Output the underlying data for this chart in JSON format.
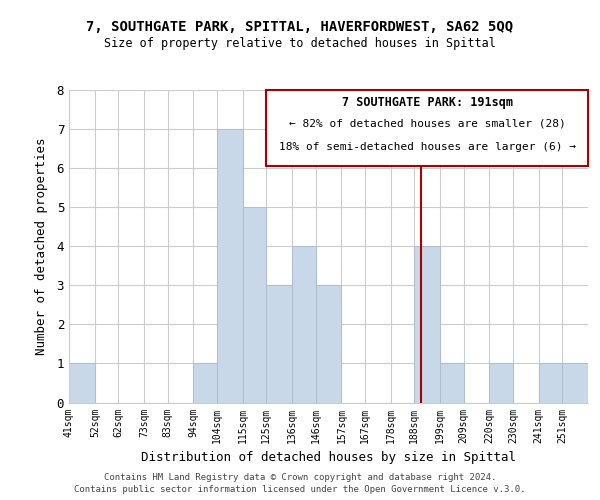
{
  "title1": "7, SOUTHGATE PARK, SPITTAL, HAVERFORDWEST, SA62 5QQ",
  "title2": "Size of property relative to detached houses in Spittal",
  "xlabel": "Distribution of detached houses by size in Spittal",
  "ylabel": "Number of detached properties",
  "bar_labels": [
    "41sqm",
    "52sqm",
    "62sqm",
    "73sqm",
    "83sqm",
    "94sqm",
    "104sqm",
    "115sqm",
    "125sqm",
    "136sqm",
    "146sqm",
    "157sqm",
    "167sqm",
    "178sqm",
    "188sqm",
    "199sqm",
    "209sqm",
    "220sqm",
    "230sqm",
    "241sqm",
    "251sqm"
  ],
  "bar_values": [
    1,
    0,
    0,
    0,
    0,
    1,
    7,
    5,
    3,
    4,
    3,
    0,
    0,
    0,
    4,
    1,
    0,
    1,
    0,
    1,
    1
  ],
  "bar_color": "#c8d8e8",
  "bar_edge_color": "#aabbcc",
  "grid_color": "#cccccc",
  "subject_line_color": "#aa0000",
  "annotation_box_title": "7 SOUTHGATE PARK: 191sqm",
  "annotation_line1": "← 82% of detached houses are smaller (28)",
  "annotation_line2": "18% of semi-detached houses are larger (6) →",
  "annotation_box_edge_color": "#aa0000",
  "ylim": [
    0,
    8
  ],
  "yticks": [
    0,
    1,
    2,
    3,
    4,
    5,
    6,
    7,
    8
  ],
  "footer1": "Contains HM Land Registry data © Crown copyright and database right 2024.",
  "footer2": "Contains public sector information licensed under the Open Government Licence v.3.0.",
  "bin_edges": [
    41,
    52,
    62,
    73,
    83,
    94,
    104,
    115,
    125,
    136,
    146,
    157,
    167,
    178,
    188,
    199,
    209,
    220,
    230,
    241,
    251,
    262
  ]
}
